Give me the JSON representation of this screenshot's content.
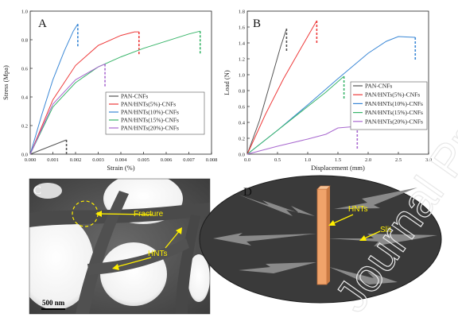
{
  "colors": {
    "PAN-CNFs": "#555555",
    "PAN/HNTs(5%)-CNFs": "#ee3b3b",
    "PAN/HNTs(10%)-CNFs": "#3b88d6",
    "PAN/HNTs(15%)-CNFs": "#39b56a",
    "PAN/HNTs(20%)-CNFs": "#a868cf"
  },
  "chart_data": [
    {
      "panel": "A",
      "type": "line",
      "xlabel": "Strain (%)",
      "ylabel": "Stress (Mpa)",
      "xlim": [
        0,
        0.008
      ],
      "ylim": [
        0,
        1.0
      ],
      "xticks": [
        "0.000",
        "0.001",
        "0.002",
        "0.003",
        "0.004",
        "0.005",
        "0.006",
        "0.007",
        "0.008"
      ],
      "yticks": [
        "0.0",
        "0.2",
        "0.4",
        "0.6",
        "0.8",
        "1.0"
      ],
      "legend_position": "bottom-right",
      "series": [
        {
          "name": "PAN-CNFs",
          "points": [
            [
              0,
              0
            ],
            [
              0.0008,
              0.05
            ],
            [
              0.0016,
              0.1
            ]
          ],
          "break_at": 0.0016
        },
        {
          "name": "PAN/HNTs(5%)-CNFs",
          "points": [
            [
              0,
              0
            ],
            [
              0.001,
              0.38
            ],
            [
              0.002,
              0.62
            ],
            [
              0.003,
              0.76
            ],
            [
              0.004,
              0.83
            ],
            [
              0.0046,
              0.855
            ],
            [
              0.0048,
              0.855
            ]
          ],
          "break_at": 0.0048
        },
        {
          "name": "PAN/HNTs(10%)-CNFs",
          "points": [
            [
              0,
              0
            ],
            [
              0.0005,
              0.27
            ],
            [
              0.001,
              0.52
            ],
            [
              0.0015,
              0.72
            ],
            [
              0.0019,
              0.86
            ],
            [
              0.0021,
              0.91
            ]
          ],
          "break_at": 0.0021
        },
        {
          "name": "PAN/HNTs(15%)-CNFs",
          "points": [
            [
              0,
              0
            ],
            [
              0.001,
              0.33
            ],
            [
              0.002,
              0.5
            ],
            [
              0.003,
              0.61
            ],
            [
              0.004,
              0.68
            ],
            [
              0.005,
              0.74
            ],
            [
              0.006,
              0.79
            ],
            [
              0.007,
              0.84
            ],
            [
              0.0075,
              0.86
            ]
          ],
          "break_at": 0.0075
        },
        {
          "name": "PAN/HNTs(20%)-CNFs",
          "points": [
            [
              0,
              0
            ],
            [
              0.001,
              0.35
            ],
            [
              0.002,
              0.52
            ],
            [
              0.003,
              0.61
            ],
            [
              0.0033,
              0.63
            ]
          ],
          "break_at": 0.0033
        }
      ]
    },
    {
      "panel": "B",
      "type": "line",
      "xlabel": "Displacement (mm)",
      "ylabel": "Load (N)",
      "xlim": [
        0,
        3.0
      ],
      "ylim": [
        0,
        1.8
      ],
      "xticks": [
        "0.0",
        "0.5",
        "1.0",
        "1.5",
        "2.0",
        "2.5",
        "3.0"
      ],
      "yticks": [
        "0.0",
        "0.2",
        "0.4",
        "0.6",
        "0.8",
        "1.0",
        "1.2",
        "1.4",
        "1.6",
        "1.8"
      ],
      "legend_position": "bottom-right",
      "series": [
        {
          "name": "PAN-CNFs",
          "points": [
            [
              0,
              0
            ],
            [
              0.2,
              0.42
            ],
            [
              0.4,
              0.95
            ],
            [
              0.55,
              1.35
            ],
            [
              0.65,
              1.58
            ]
          ],
          "break_at": 0.65
        },
        {
          "name": "PAN/HNTs(5%)-CNFs",
          "points": [
            [
              0,
              0
            ],
            [
              0.3,
              0.5
            ],
            [
              0.6,
              0.95
            ],
            [
              0.9,
              1.35
            ],
            [
              1.15,
              1.68
            ]
          ],
          "break_at": 1.15
        },
        {
          "name": "PAN/HNTs(10%)-CNFs",
          "points": [
            [
              0,
              0
            ],
            [
              0.5,
              0.3
            ],
            [
              1.0,
              0.62
            ],
            [
              1.5,
              0.95
            ],
            [
              2.0,
              1.27
            ],
            [
              2.3,
              1.42
            ],
            [
              2.5,
              1.48
            ],
            [
              2.78,
              1.47
            ]
          ],
          "break_at": 2.78
        },
        {
          "name": "PAN/HNTs(15%)-CNFs",
          "points": [
            [
              0,
              0
            ],
            [
              0.5,
              0.3
            ],
            [
              1.0,
              0.6
            ],
            [
              1.3,
              0.78
            ],
            [
              1.6,
              0.98
            ]
          ],
          "break_at": 1.6
        },
        {
          "name": "PAN/HNTs(20%)-CNFs",
          "points": [
            [
              0,
              0
            ],
            [
              0.5,
              0.1
            ],
            [
              1.0,
              0.19
            ],
            [
              1.3,
              0.25
            ],
            [
              1.5,
              0.33
            ],
            [
              1.82,
              0.35
            ]
          ],
          "break_at": 1.82
        }
      ]
    }
  ],
  "panel_c": {
    "letter": "C",
    "fracture_label": "Fracture",
    "hnts_label": "HNTs",
    "scale_bar": "500 nm"
  },
  "panel_d": {
    "letter": "D",
    "hnts_label": "HNTs",
    "slit_label": "Slit"
  },
  "watermark": "Journal Pre-proof"
}
